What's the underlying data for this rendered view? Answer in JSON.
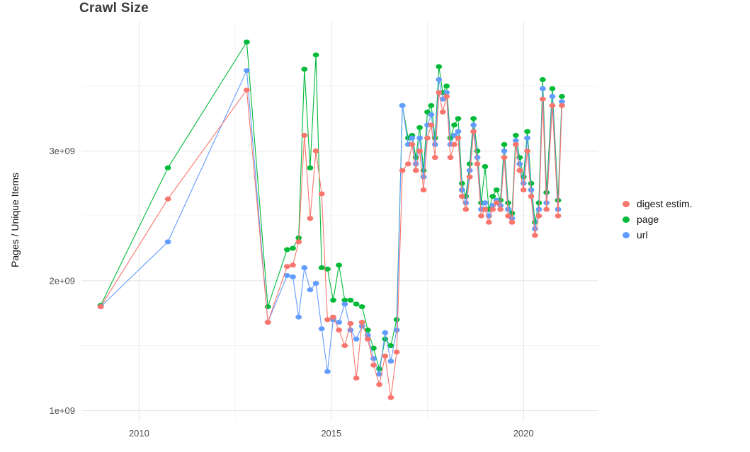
{
  "chart": {
    "title": "Crawl Size",
    "ylabel": "Pages / Unique Items"
  },
  "chart_data": {
    "type": "line",
    "title": "Crawl Size",
    "xlabel": "",
    "ylabel": "Pages / Unique Items",
    "x_unit": "year",
    "y_unit": 1000000000,
    "x_domain": [
      2008.5,
      2021.95
    ],
    "y_domain": [
      0.92,
      4.0
    ],
    "grid": true,
    "grid_color_major": "#e3e3e3",
    "grid_color_minor": "#f2f2f2",
    "background": "#ffffff",
    "legend_position": "right",
    "x_ticks": [
      {
        "value": 2010,
        "label": "2010"
      },
      {
        "value": 2015,
        "label": "2015"
      },
      {
        "value": 2020,
        "label": "2020"
      }
    ],
    "y_ticks": [
      {
        "value": 1,
        "label": "1e+09"
      },
      {
        "value": 2,
        "label": "2e+09"
      },
      {
        "value": 3,
        "label": "3e+09"
      }
    ],
    "x_minor": [
      2012.5,
      2017.5
    ],
    "y_minor": [
      1.5,
      2.5,
      3.5
    ],
    "draw_order": [
      1,
      2,
      0
    ],
    "x": [
      2009.0,
      2010.75,
      2012.8,
      2013.35,
      2013.85,
      2014.0,
      2014.15,
      2014.3,
      2014.45,
      2014.6,
      2014.75,
      2014.9,
      2015.05,
      2015.2,
      2015.35,
      2015.5,
      2015.65,
      2015.8,
      2015.95,
      2016.1,
      2016.25,
      2016.4,
      2016.55,
      2016.7,
      2016.85,
      2017.0,
      2017.1,
      2017.2,
      2017.3,
      2017.4,
      2017.5,
      2017.6,
      2017.7,
      2017.8,
      2017.9,
      2018.0,
      2018.1,
      2018.2,
      2018.3,
      2018.4,
      2018.5,
      2018.6,
      2018.7,
      2018.8,
      2018.9,
      2019.0,
      2019.1,
      2019.2,
      2019.3,
      2019.4,
      2019.5,
      2019.6,
      2019.7,
      2019.8,
      2019.9,
      2020.0,
      2020.1,
      2020.2,
      2020.3,
      2020.4,
      2020.5,
      2020.6,
      2020.75,
      2020.9,
      2021.0
    ],
    "series": [
      {
        "name": "digest estim.",
        "color": "#F8766D",
        "values": [
          1.8,
          2.63,
          3.47,
          1.68,
          2.11,
          2.12,
          2.3,
          3.12,
          2.48,
          3.0,
          2.67,
          1.7,
          1.72,
          1.62,
          1.5,
          1.67,
          1.25,
          1.68,
          1.55,
          1.35,
          1.2,
          1.42,
          1.1,
          1.45,
          2.85,
          2.9,
          3.05,
          2.85,
          3.0,
          2.7,
          3.1,
          3.2,
          2.95,
          3.45,
          3.3,
          3.42,
          2.95,
          3.05,
          3.1,
          2.65,
          2.55,
          2.8,
          3.15,
          2.9,
          2.5,
          2.55,
          2.45,
          2.55,
          2.6,
          2.55,
          2.95,
          2.5,
          2.45,
          3.05,
          2.85,
          2.7,
          3.0,
          2.65,
          2.35,
          2.5,
          3.4,
          2.55,
          3.35,
          2.5,
          3.35
        ]
      },
      {
        "name": "page",
        "color": "#00BA38",
        "values": [
          1.81,
          2.87,
          3.84,
          1.8,
          2.24,
          2.25,
          2.33,
          3.63,
          2.87,
          3.74,
          2.1,
          2.09,
          1.85,
          2.12,
          1.85,
          1.85,
          1.82,
          1.8,
          1.62,
          1.48,
          1.32,
          1.55,
          1.5,
          1.7,
          3.35,
          3.1,
          3.12,
          2.95,
          3.18,
          2.85,
          3.3,
          3.35,
          3.1,
          3.65,
          3.45,
          3.5,
          3.1,
          3.2,
          3.25,
          2.75,
          2.65,
          2.9,
          3.25,
          3.0,
          2.6,
          2.88,
          2.55,
          2.65,
          2.7,
          2.62,
          3.05,
          2.6,
          2.52,
          3.12,
          2.95,
          2.8,
          3.15,
          2.75,
          2.45,
          2.6,
          3.55,
          2.68,
          3.48,
          2.62,
          3.42
        ]
      },
      {
        "name": "url",
        "color": "#619CFF",
        "values": [
          1.8,
          2.3,
          3.62,
          1.68,
          2.04,
          2.03,
          1.72,
          2.1,
          1.93,
          1.98,
          1.63,
          1.3,
          1.7,
          1.68,
          1.82,
          1.62,
          1.55,
          1.65,
          1.58,
          1.4,
          1.28,
          1.6,
          1.38,
          1.62,
          3.35,
          3.05,
          3.1,
          2.9,
          3.1,
          2.8,
          3.2,
          3.28,
          3.05,
          3.55,
          3.4,
          3.45,
          3.05,
          3.12,
          3.15,
          2.7,
          2.6,
          2.85,
          3.2,
          2.95,
          2.55,
          2.6,
          2.5,
          2.58,
          2.62,
          2.58,
          3.0,
          2.55,
          2.48,
          3.08,
          2.9,
          2.75,
          3.1,
          2.7,
          2.4,
          2.55,
          3.48,
          2.6,
          3.42,
          2.55,
          3.38
        ]
      }
    ]
  }
}
